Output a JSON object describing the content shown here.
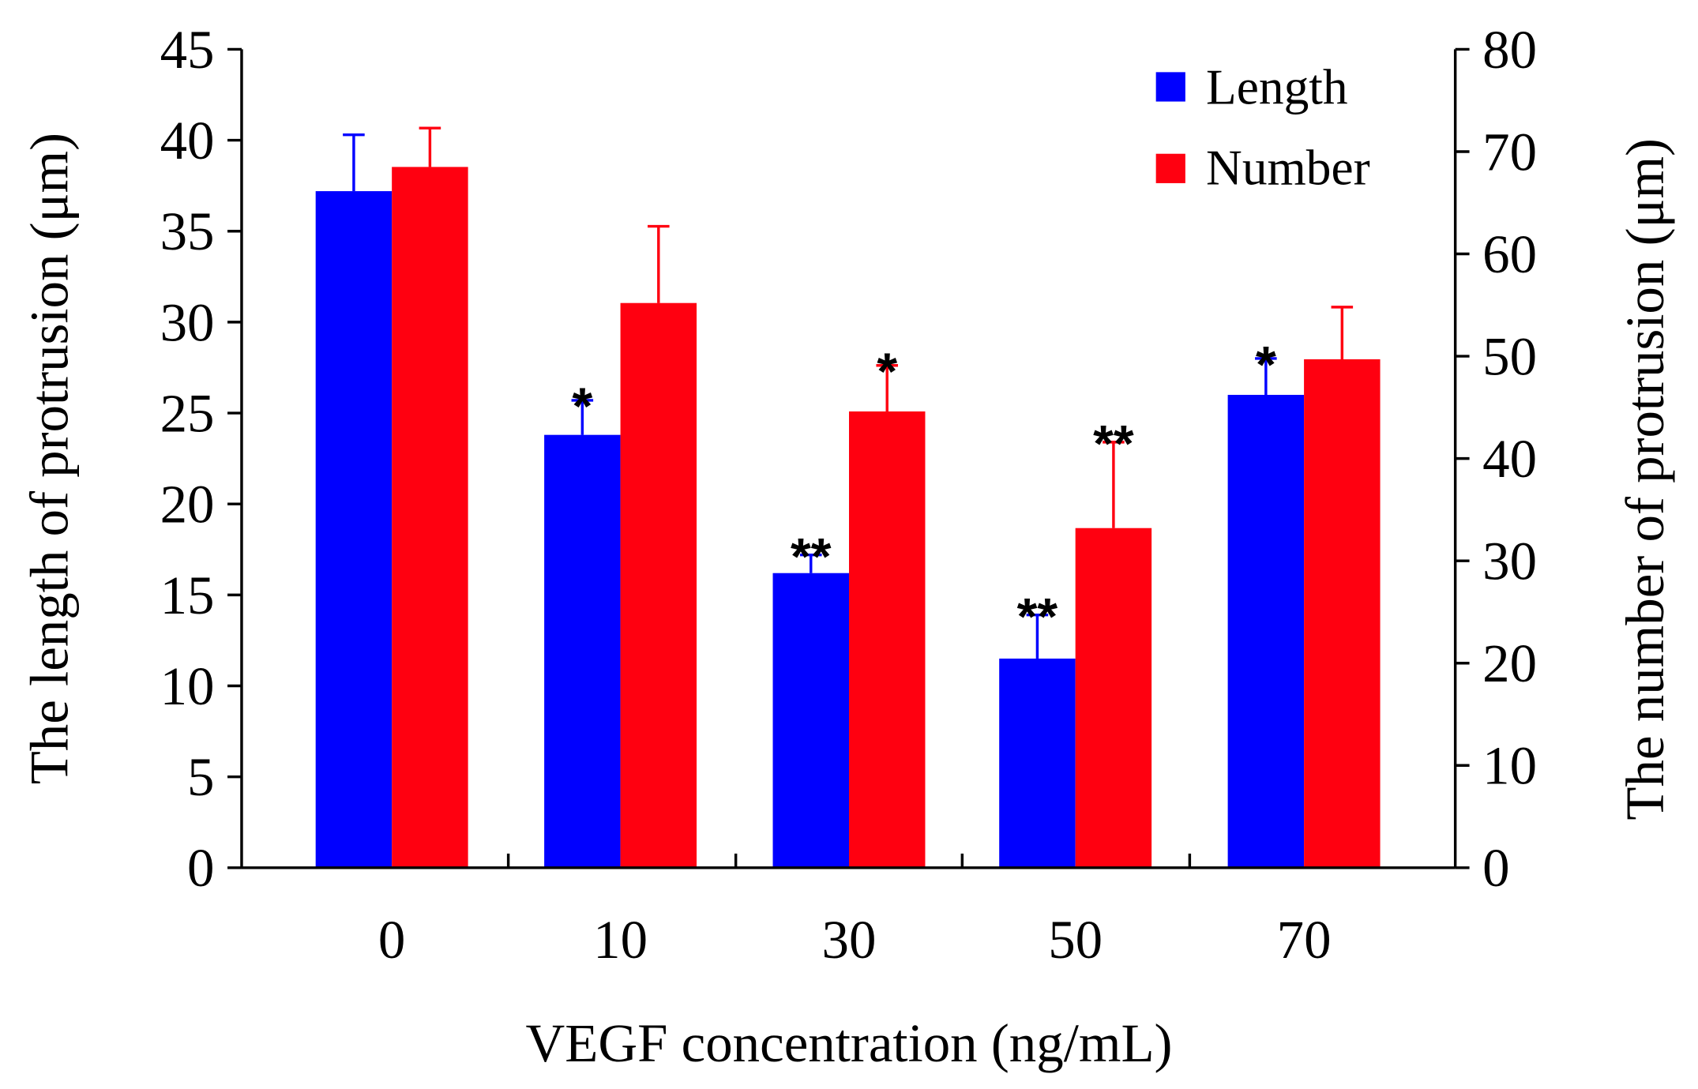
{
  "chart_data": {
    "type": "bar",
    "categories": [
      "0",
      "10",
      "30",
      "50",
      "70"
    ],
    "xlabel": "VEGF concentration (ng/mL)",
    "ylabel": "The length of protrusion (μm)",
    "y2label": "The number of protrusion (μm)",
    "ylim": [
      0,
      45
    ],
    "y2lim": [
      0,
      80
    ],
    "yticks": [
      0,
      5,
      10,
      15,
      20,
      25,
      30,
      35,
      40,
      45
    ],
    "y2ticks": [
      0,
      10,
      20,
      30,
      40,
      50,
      60,
      70,
      80
    ],
    "legend_position": "top-right",
    "series": [
      {
        "name": "Length",
        "axis": "left",
        "color": "#0000ff",
        "values": [
          37.2,
          23.8,
          16.2,
          11.5,
          26.0
        ],
        "errors": [
          3.1,
          1.9,
          1.0,
          2.4,
          2.0
        ],
        "significance": [
          "",
          "*",
          "**",
          "**",
          "*"
        ]
      },
      {
        "name": "Number",
        "axis": "right",
        "color": "#ff0010",
        "values": [
          68.5,
          55.2,
          44.6,
          33.2,
          49.7
        ],
        "errors": [
          3.8,
          7.5,
          4.5,
          8.4,
          5.1
        ],
        "significance": [
          "",
          "",
          "*",
          "**",
          ""
        ]
      }
    ]
  }
}
